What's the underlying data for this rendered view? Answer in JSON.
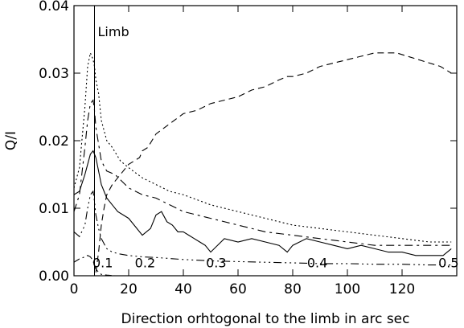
{
  "chart_data": {
    "type": "line",
    "xlabel": "Direction orhtogonal to the limb in arc sec",
    "ylabel": "Q/I",
    "xlim": [
      0,
      140
    ],
    "ylim": [
      0,
      0.04
    ],
    "x_ticks": [
      0,
      20,
      40,
      60,
      80,
      100,
      120
    ],
    "y_ticks": [
      0.0,
      0.01,
      0.02,
      0.03,
      0.04
    ],
    "y_tick_labels": [
      "0.00",
      "0.01",
      "0.02",
      "0.03",
      "0.04"
    ],
    "grid": false,
    "limb_line": {
      "x": 7.5,
      "label": "Limb"
    },
    "annotations": [
      {
        "text": "0.1",
        "x": 10.5,
        "y": 0.0015
      },
      {
        "text": "0.2",
        "x": 26,
        "y": 0.0015
      },
      {
        "text": "0.3",
        "x": 52,
        "y": 0.0015
      },
      {
        "text": "0.4",
        "x": 89,
        "y": 0.0015
      },
      {
        "text": "0.5",
        "x": 137,
        "y": 0.0015
      }
    ],
    "series": [
      {
        "dash": "2,3",
        "x": [
          0,
          2,
          4,
          5,
          6,
          7,
          7.5,
          8,
          9,
          10,
          12,
          14,
          17,
          20,
          25,
          30,
          35,
          40,
          50,
          60,
          70,
          80,
          90,
          100,
          110,
          120,
          130,
          138
        ],
        "y": [
          0.013,
          0.016,
          0.025,
          0.031,
          0.033,
          0.032,
          0.031,
          0.029,
          0.027,
          0.023,
          0.02,
          0.019,
          0.017,
          0.016,
          0.0145,
          0.0135,
          0.0125,
          0.012,
          0.0105,
          0.0095,
          0.0085,
          0.0075,
          0.007,
          0.0065,
          0.006,
          0.0055,
          0.005,
          0.005
        ]
      },
      {
        "dash": "10,5,3,5",
        "x": [
          0,
          2,
          4,
          5,
          6,
          7,
          7.5,
          8,
          9,
          10,
          12,
          15,
          20,
          25,
          30,
          35,
          40,
          50,
          60,
          70,
          80,
          90,
          100,
          110,
          120,
          130,
          138
        ],
        "y": [
          0.0095,
          0.012,
          0.019,
          0.023,
          0.0255,
          0.026,
          0.0245,
          0.022,
          0.0195,
          0.017,
          0.0155,
          0.015,
          0.013,
          0.012,
          0.0115,
          0.0105,
          0.0095,
          0.0085,
          0.0075,
          0.0065,
          0.006,
          0.0055,
          0.005,
          0.0045,
          0.0045,
          0.0045,
          0.0045
        ]
      },
      {
        "dash": "",
        "x": [
          0,
          2,
          4,
          6,
          7,
          8,
          9,
          10,
          11,
          12,
          14,
          16,
          18,
          20,
          22,
          25,
          28,
          30,
          32,
          34,
          36,
          38,
          40,
          42,
          44,
          46,
          48,
          50,
          55,
          60,
          65,
          70,
          75,
          78,
          80,
          85,
          90,
          95,
          100,
          105,
          110,
          115,
          120,
          125,
          130,
          135,
          138
        ],
        "y": [
          0.012,
          0.0125,
          0.015,
          0.018,
          0.0185,
          0.0175,
          0.0155,
          0.0135,
          0.0125,
          0.0115,
          0.0105,
          0.0095,
          0.009,
          0.0085,
          0.0075,
          0.006,
          0.007,
          0.009,
          0.0095,
          0.008,
          0.0075,
          0.0065,
          0.0065,
          0.006,
          0.0055,
          0.005,
          0.0045,
          0.0035,
          0.0055,
          0.005,
          0.0055,
          0.005,
          0.0045,
          0.0035,
          0.0045,
          0.0055,
          0.005,
          0.0045,
          0.004,
          0.0045,
          0.004,
          0.0035,
          0.0035,
          0.003,
          0.003,
          0.003,
          0.004
        ]
      },
      {
        "dash": "8,5",
        "x": [
          8,
          9,
          10,
          11,
          12,
          14,
          16,
          18,
          20,
          22,
          24,
          25,
          27,
          30,
          35,
          40,
          45,
          50,
          55,
          60,
          65,
          70,
          75,
          78,
          80,
          85,
          90,
          95,
          100,
          105,
          110,
          114,
          118,
          122,
          126,
          130,
          134,
          138
        ],
        "y": [
          0.0005,
          0.0035,
          0.0075,
          0.01,
          0.012,
          0.0135,
          0.0145,
          0.0155,
          0.0165,
          0.017,
          0.0175,
          0.0185,
          0.019,
          0.021,
          0.0225,
          0.024,
          0.0245,
          0.0255,
          0.026,
          0.0265,
          0.0275,
          0.028,
          0.029,
          0.0295,
          0.0295,
          0.03,
          0.031,
          0.0315,
          0.032,
          0.0325,
          0.033,
          0.033,
          0.033,
          0.0325,
          0.032,
          0.0315,
          0.031,
          0.03
        ]
      },
      {
        "dash": "10,4,2,4,2,4,2,4",
        "x": [
          0,
          2,
          4,
          5,
          6,
          7,
          7.5,
          8,
          9,
          10,
          12,
          14,
          17,
          20,
          25,
          30,
          40,
          50,
          60,
          70,
          80,
          90,
          100,
          110,
          120,
          130,
          138
        ],
        "y": [
          0.0065,
          0.0058,
          0.0075,
          0.01,
          0.012,
          0.0125,
          0.011,
          0.009,
          0.007,
          0.0055,
          0.004,
          0.0035,
          0.0032,
          0.003,
          0.0028,
          0.0027,
          0.0024,
          0.0022,
          0.0021,
          0.002,
          0.0019,
          0.0018,
          0.0018,
          0.0017,
          0.0017,
          0.0016,
          0.0016
        ]
      },
      {
        "dash": "8,4,2,4",
        "x": [
          0,
          2,
          4,
          5,
          6,
          7,
          7.5,
          8,
          9,
          10,
          12,
          15,
          20,
          25,
          30,
          40,
          50,
          60,
          70,
          80,
          90,
          100,
          110,
          120,
          130,
          138
        ],
        "y": [
          0.002,
          0.0025,
          0.0028,
          0.003,
          0.0028,
          0.0022,
          0.0015,
          0.001,
          0.0005,
          0.0002,
          0.0001,
          0.0,
          0.0,
          0.0,
          0.0,
          0.0,
          0.0,
          0.0,
          0.0,
          0.0,
          0.0,
          0.0,
          0.0,
          0.0,
          0.0,
          0.0
        ]
      }
    ]
  }
}
